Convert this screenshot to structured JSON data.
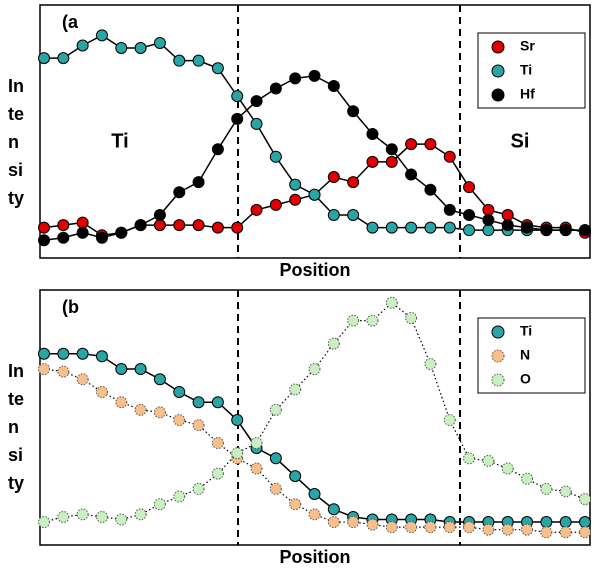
{
  "chart_data": [
    {
      "type": "line",
      "panel_label": "(a",
      "xlabel": "Position",
      "ylabel": [
        "In",
        "te",
        "n",
        "si",
        "ty"
      ],
      "annotations": [
        "Ti",
        "Si"
      ],
      "legend": "upper right",
      "grid": false,
      "ylim": [
        0,
        100
      ],
      "categories": [
        null,
        null,
        null,
        null,
        null,
        null,
        null,
        null,
        null,
        null,
        null,
        null,
        null,
        null,
        null,
        null,
        null,
        null,
        null,
        null,
        null,
        null,
        null,
        null,
        null,
        null,
        null,
        null,
        null
      ],
      "series": [
        {
          "name": "Sr",
          "color": "#e00000",
          "linestyle": "solid",
          "values": [
            12,
            13,
            14,
            9,
            10,
            13,
            13,
            13,
            13,
            12,
            12,
            19,
            21,
            23,
            25,
            32,
            30,
            38,
            38,
            45,
            45,
            40,
            28,
            19,
            17,
            13,
            12,
            12,
            10
          ]
        },
        {
          "name": "Ti",
          "color": "#2aa5a5",
          "linestyle": "solid",
          "values": [
            79,
            79,
            84,
            88,
            83,
            83,
            85,
            78,
            78,
            75,
            64,
            53,
            40,
            29,
            25,
            17,
            17,
            12,
            12,
            12,
            12,
            12,
            11,
            11,
            11,
            11,
            11,
            11,
            11
          ]
        },
        {
          "name": "Hf",
          "color": "#000000",
          "linestyle": "solid",
          "values": [
            7,
            8,
            10,
            8,
            10,
            13,
            17,
            26,
            30,
            43,
            55,
            62,
            67,
            71,
            72,
            68,
            58,
            49,
            43,
            33,
            27,
            19,
            17,
            15,
            13,
            12,
            11,
            11,
            11
          ]
        }
      ]
    },
    {
      "type": "line",
      "panel_label": "(b",
      "xlabel": "Position",
      "ylabel": [
        "In",
        "te",
        "n",
        "si",
        "ty"
      ],
      "legend": "upper right",
      "grid": false,
      "ylim": [
        0,
        100
      ],
      "categories": [
        null,
        null,
        null,
        null,
        null,
        null,
        null,
        null,
        null,
        null,
        null,
        null,
        null,
        null,
        null,
        null,
        null,
        null,
        null,
        null,
        null,
        null,
        null,
        null,
        null,
        null,
        null,
        null,
        null
      ],
      "series": [
        {
          "name": "Ti",
          "color": "#2aa5a5",
          "linestyle": "solid",
          "values": [
            75,
            75,
            75,
            74,
            69,
            69,
            65,
            60,
            56,
            56,
            49,
            38,
            34,
            27,
            20,
            14,
            11,
            10,
            10,
            10,
            10,
            9,
            9,
            9,
            9,
            9,
            9,
            9,
            9
          ]
        },
        {
          "name": "N",
          "color": "#f7c08a",
          "linestyle": "dotted",
          "values": [
            69,
            68,
            65,
            60,
            56,
            53,
            52,
            49,
            47,
            40,
            34,
            30,
            22,
            16,
            12,
            9,
            9,
            8,
            7,
            7,
            7,
            7,
            7,
            6,
            6,
            6,
            5,
            5,
            5
          ]
        },
        {
          "name": "O",
          "color": "#c8f0c0",
          "linestyle": "dotted",
          "values": [
            9,
            11,
            12,
            11,
            10,
            12,
            16,
            19,
            22,
            28,
            36,
            40,
            53,
            61,
            69,
            79,
            88,
            88,
            95,
            89,
            71,
            49,
            34,
            33,
            30,
            26,
            22,
            21,
            18
          ]
        }
      ]
    }
  ]
}
